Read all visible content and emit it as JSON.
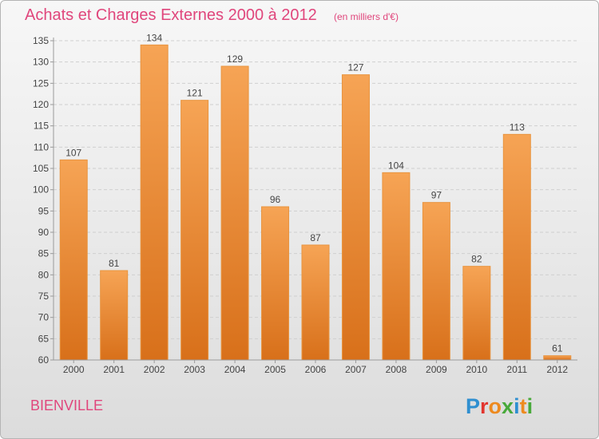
{
  "header": {
    "title": "Achats et Charges Externes 2000 à 2012",
    "unit": "(en milliers d'€)"
  },
  "commune": "BIENVILLE",
  "logo": {
    "text": "Proxiti",
    "letter_colors": [
      "#2f8fd0",
      "#e2352e",
      "#ed8a1f",
      "#48a93a",
      "#2f8fd0",
      "#ed8a1f",
      "#48a93a"
    ]
  },
  "colors": {
    "bar_light": "#f6a455",
    "bar_dark": "#d8701a",
    "bar_outline": "#e8943f",
    "title": "#e0467c",
    "grid": "#cfcfcf",
    "axis": "#9a9a9a"
  },
  "chart_data": {
    "type": "bar",
    "title": "Achats et Charges Externes 2000 à 2012",
    "subtitle": "(en milliers d'€)",
    "categories": [
      "2000",
      "2001",
      "2002",
      "2003",
      "2004",
      "2005",
      "2006",
      "2007",
      "2008",
      "2009",
      "2010",
      "2011",
      "2012"
    ],
    "values": [
      107,
      81,
      134,
      121,
      129,
      96,
      87,
      127,
      104,
      97,
      82,
      113,
      61
    ],
    "ylim": [
      60,
      135
    ],
    "yticks": [
      60,
      65,
      70,
      75,
      80,
      85,
      90,
      95,
      100,
      105,
      110,
      115,
      120,
      125,
      130,
      135
    ],
    "grid": true,
    "xlabel": "",
    "ylabel": ""
  }
}
